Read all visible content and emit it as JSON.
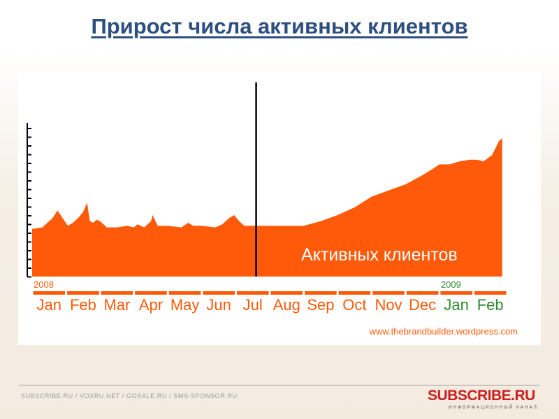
{
  "slide": {
    "title": "Прирост числа активных клиентов"
  },
  "chart_data": {
    "type": "area",
    "title": "",
    "xlabel": "",
    "ylabel": "",
    "grid": false,
    "legend": "none",
    "x_domain": [
      0,
      14
    ],
    "ylim": [
      0,
      100
    ],
    "year_labels": [
      {
        "label": "2008",
        "at": 0.0
      },
      {
        "label": "2009",
        "at": 12.0
      }
    ],
    "month_labels": [
      "Jan",
      "Feb",
      "Mar",
      "Apr",
      "May",
      "Jun",
      "Jul",
      "Aug",
      "Sep",
      "Oct",
      "Nov",
      "Dec",
      "Jan",
      "Feb"
    ],
    "series": [
      {
        "label": "Активных клиентов",
        "color": "#ff5a0a",
        "x": [
          0,
          0.3,
          0.6,
          0.75,
          0.9,
          1.05,
          1.2,
          1.35,
          1.5,
          1.62,
          1.7,
          1.8,
          1.9,
          2.0,
          2.2,
          2.5,
          2.8,
          3.0,
          3.1,
          3.3,
          3.5,
          3.55,
          3.7,
          4.0,
          4.4,
          4.6,
          4.75,
          5.0,
          5.4,
          5.6,
          5.8,
          5.95,
          6.1,
          6.25,
          6.5,
          7.0,
          7.5,
          8.0,
          8.5,
          9.0,
          9.5,
          10.0,
          10.5,
          11.0,
          11.5,
          11.8,
          12.0,
          12.3,
          12.6,
          12.9,
          13.1,
          13.3,
          13.55,
          13.75,
          13.85
        ],
        "y": [
          31,
          32,
          38,
          43,
          38,
          33,
          35,
          38,
          42,
          48,
          36,
          35,
          37,
          36,
          32,
          32,
          33,
          32,
          34,
          32,
          36,
          40,
          33,
          33,
          32,
          35,
          33,
          33,
          32,
          34,
          38,
          40,
          36,
          33,
          33,
          33,
          33,
          33,
          36,
          40,
          45,
          52,
          56,
          60,
          66,
          70,
          73,
          73,
          75,
          76,
          76,
          75,
          79,
          88,
          90
        ]
      }
    ],
    "annotations": [
      {
        "type": "vline",
        "x": 6.6,
        "label": ""
      }
    ],
    "watermark": "www.thebrandbuilder.wordpress.com"
  },
  "footer": {
    "links": "SUBSCRIBE.RU / VOXRU.NET / GOSALE.RU / SMS-SPONSOR.RU",
    "logo_text": "SUBSCRIBE.RU",
    "logo_subtitle": "ИНФОРМАЦИОННЫЙ КАНАЛ"
  }
}
